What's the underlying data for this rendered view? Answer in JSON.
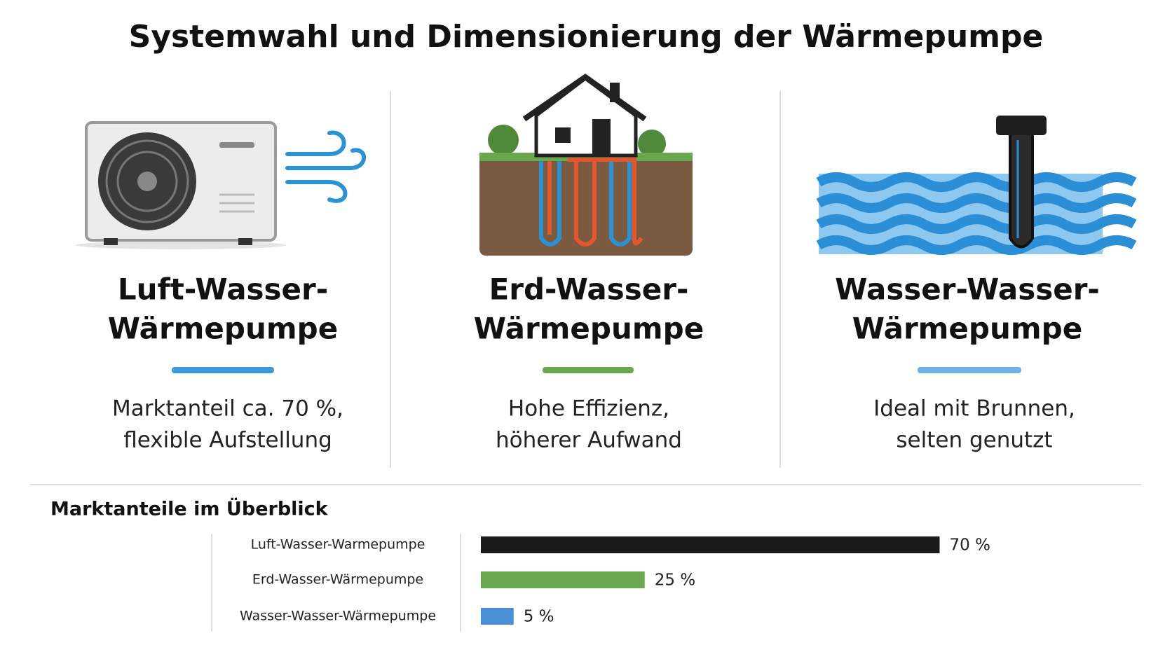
{
  "header": {
    "title": "Systemwahl und Dimensionierung der Wärmepumpe"
  },
  "columns": [
    {
      "title": [
        "Luft-Wasser-",
        "Wärmepumpe"
      ],
      "text": [
        "Marktanteil ca. 70 %,",
        "flexible Aufstellung"
      ]
    },
    {
      "title": [
        "Erd-Wasser-",
        "Wärmepumpe"
      ],
      "text": [
        "Hohe Effizienz,",
        "höherer Aufwand"
      ]
    },
    {
      "title": [
        "Wasser-Wasser-",
        "Wärmepumpe"
      ],
      "text": [
        "Ideal mit Brunnen,",
        "selten genutzt"
      ]
    }
  ],
  "chart_data": {
    "type": "bar",
    "orientation": "horizontal",
    "title": "Marktanteile im Überblick",
    "categories": [
      "Luft-Wasser-Warmepumpe",
      "Erd-Wasser-Wärmepumpe",
      "Wasser-Wasser-Wärmepumpe"
    ],
    "values": [
      70,
      25,
      5
    ],
    "value_labels": [
      "70 %",
      "25 %",
      "5 %"
    ],
    "colors": [
      "#1a1a1a",
      "#6aa84f",
      "#4a90d9"
    ]
  }
}
